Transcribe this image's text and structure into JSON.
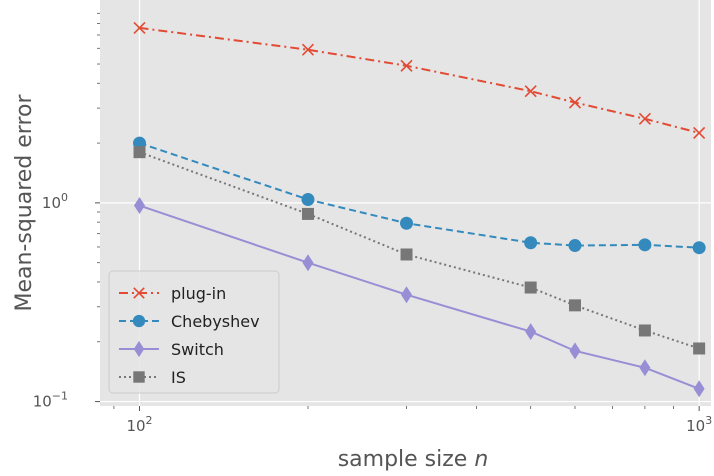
{
  "chart_data": {
    "type": "line",
    "xlabel": "sample size",
    "xlabel_var": "n",
    "ylabel": "Mean-squared error",
    "xscale": "log",
    "yscale": "log",
    "xlim": [
      85,
      1050
    ],
    "ylim": [
      0.095,
      10.5
    ],
    "grid": true,
    "legend_position": "lower-left",
    "x_ticks": [
      {
        "value": 100,
        "base": "10",
        "exp": "2"
      },
      {
        "value": 1000,
        "base": "10",
        "exp": "3"
      }
    ],
    "y_ticks": [
      {
        "value": 0.1,
        "base": "10",
        "exp": "−1"
      },
      {
        "value": 1,
        "base": "10",
        "exp": "0"
      }
    ],
    "x": [
      100,
      200,
      300,
      500,
      600,
      800,
      1000
    ],
    "series": [
      {
        "name": "plug-in",
        "color": "#e24a33",
        "marker": "x",
        "dash": "dashdot",
        "values": [
          7.6,
          5.9,
          4.9,
          3.65,
          3.2,
          2.65,
          2.25
        ]
      },
      {
        "name": "Chebyshev",
        "color": "#348abd",
        "marker": "circle",
        "dash": "dashed",
        "values": [
          2.0,
          1.04,
          0.79,
          0.63,
          0.61,
          0.615,
          0.595
        ]
      },
      {
        "name": "Switch",
        "color": "#988ed5",
        "marker": "diamond",
        "dash": "solid",
        "values": [
          0.97,
          0.5,
          0.345,
          0.225,
          0.18,
          0.148,
          0.116
        ]
      },
      {
        "name": "IS",
        "color": "#777777",
        "marker": "square",
        "dash": "dotted",
        "values": [
          1.8,
          0.88,
          0.55,
          0.375,
          0.305,
          0.228,
          0.185
        ]
      }
    ]
  }
}
